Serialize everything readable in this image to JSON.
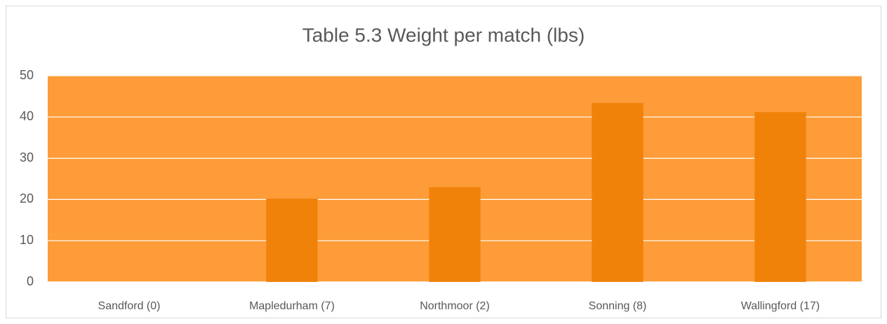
{
  "chart_data": {
    "type": "bar",
    "title": "Table 5.3 Weight per match (lbs)",
    "categories": [
      "Sandford (0)",
      "Mapledurham (7)",
      "Northmoor (2)",
      "Sonning (8)",
      "Wallingford (17)"
    ],
    "values": [
      0,
      20.2,
      23.0,
      43.4,
      41.2
    ],
    "color": "#f0820a",
    "ylim": [
      0,
      50
    ],
    "yticks": [
      0,
      10,
      20,
      30,
      40,
      50
    ],
    "grid": true
  }
}
